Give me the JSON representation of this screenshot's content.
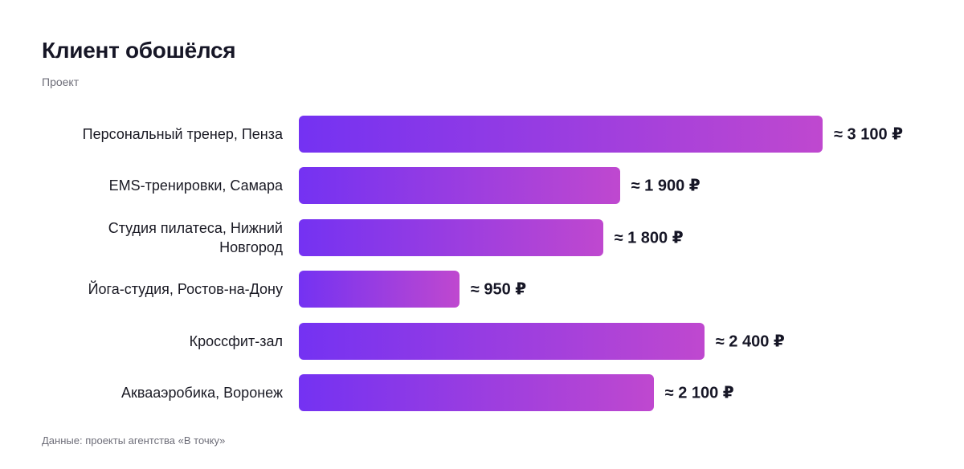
{
  "chart_data": {
    "type": "bar",
    "orientation": "horizontal",
    "title": "Клиент обошёлся",
    "subtitle": "Проект",
    "categories": [
      "Персональный тренер, Пенза",
      "EMS-тренировки, Самара",
      "Студия пилатеса, Нижний Новгород",
      "Йога-студия, Ростов-на-Дону",
      "Кроссфит-зал",
      "Аквааэробика, Воронеж"
    ],
    "values": [
      3100,
      1900,
      1800,
      950,
      2400,
      2100
    ],
    "value_labels": [
      "≈ 3 100 ₽",
      "≈ 1 900 ₽",
      "≈ 1 800 ₽",
      "≈ 950 ₽",
      "≈ 2 400 ₽",
      "≈ 2 100 ₽"
    ],
    "color": [
      "#7432f2",
      "#bf48cf"
    ],
    "source": "Данные: проекты агентства «В точку»"
  }
}
